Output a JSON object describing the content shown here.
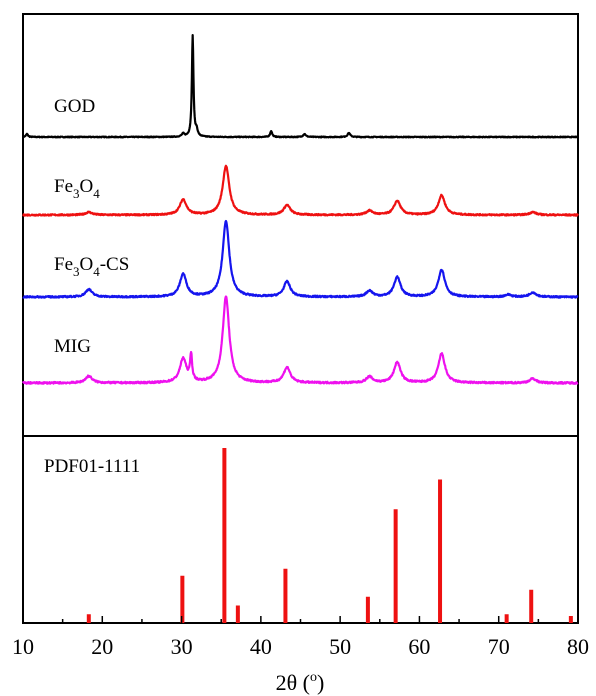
{
  "chart_data": {
    "type": "line",
    "xlabel": "2θ (°)",
    "xlabel_main": "2θ (",
    "xlabel_sup": "o",
    "xlabel_close": ")",
    "xlim": [
      10,
      80
    ],
    "xticks": [
      10,
      20,
      30,
      40,
      50,
      60,
      70,
      80
    ],
    "grid": false,
    "series": [
      {
        "name": "GOD",
        "label_parts": [
          {
            "t": "GOD",
            "sub": false
          }
        ],
        "color": "#000000",
        "noise": 0.4,
        "peaks": [
          {
            "x": 31.4,
            "h": 100,
            "w": 0.12
          },
          {
            "x": 31.9,
            "h": 6,
            "w": 0.15
          },
          {
            "x": 30.2,
            "h": 3,
            "w": 0.2
          },
          {
            "x": 41.3,
            "h": 6,
            "w": 0.15
          },
          {
            "x": 45.5,
            "h": 3,
            "w": 0.2
          },
          {
            "x": 51.1,
            "h": 4,
            "w": 0.2
          },
          {
            "x": 10.5,
            "h": 3,
            "w": 0.15
          }
        ]
      },
      {
        "name": "Fe3O4",
        "label_parts": [
          {
            "t": "Fe",
            "sub": false
          },
          {
            "t": "3",
            "sub": true
          },
          {
            "t": "O",
            "sub": false
          },
          {
            "t": "4",
            "sub": true
          }
        ],
        "color": "#ee1111",
        "noise": 1.0,
        "peaks": [
          {
            "x": 18.3,
            "h": 4,
            "w": 0.5
          },
          {
            "x": 30.2,
            "h": 22,
            "w": 0.5
          },
          {
            "x": 35.6,
            "h": 70,
            "w": 0.5
          },
          {
            "x": 43.3,
            "h": 14,
            "w": 0.5
          },
          {
            "x": 53.7,
            "h": 6,
            "w": 0.5
          },
          {
            "x": 57.2,
            "h": 20,
            "w": 0.5
          },
          {
            "x": 62.8,
            "h": 28,
            "w": 0.5
          },
          {
            "x": 74.3,
            "h": 4,
            "w": 0.5
          }
        ]
      },
      {
        "name": "Fe3O4-CS",
        "label_parts": [
          {
            "t": "Fe",
            "sub": false
          },
          {
            "t": "3",
            "sub": true
          },
          {
            "t": "O",
            "sub": false
          },
          {
            "t": "4",
            "sub": true
          },
          {
            "t": "-CS",
            "sub": false
          }
        ],
        "color": "#1515ee",
        "noise": 1.0,
        "peaks": [
          {
            "x": 18.3,
            "h": 10,
            "w": 0.5
          },
          {
            "x": 30.2,
            "h": 30,
            "w": 0.5
          },
          {
            "x": 35.6,
            "h": 100,
            "w": 0.5
          },
          {
            "x": 43.3,
            "h": 20,
            "w": 0.5
          },
          {
            "x": 53.7,
            "h": 8,
            "w": 0.5
          },
          {
            "x": 57.2,
            "h": 26,
            "w": 0.5
          },
          {
            "x": 62.8,
            "h": 36,
            "w": 0.5
          },
          {
            "x": 71.2,
            "h": 3,
            "w": 0.5
          },
          {
            "x": 74.3,
            "h": 6,
            "w": 0.5
          }
        ]
      },
      {
        "name": "MIG",
        "label_parts": [
          {
            "t": "MIG",
            "sub": false
          }
        ],
        "color": "#ee11ee",
        "noise": 1.0,
        "peaks": [
          {
            "x": 18.3,
            "h": 8,
            "w": 0.5
          },
          {
            "x": 30.2,
            "h": 28,
            "w": 0.5
          },
          {
            "x": 31.2,
            "h": 30,
            "w": 0.15
          },
          {
            "x": 35.6,
            "h": 100,
            "w": 0.5
          },
          {
            "x": 43.3,
            "h": 18,
            "w": 0.5
          },
          {
            "x": 53.7,
            "h": 7,
            "w": 0.5
          },
          {
            "x": 57.2,
            "h": 24,
            "w": 0.5
          },
          {
            "x": 62.8,
            "h": 34,
            "w": 0.5
          },
          {
            "x": 74.3,
            "h": 5,
            "w": 0.5
          }
        ]
      }
    ],
    "reference": {
      "name": "PDF01-1111",
      "color": "#ee1111",
      "ylim": [
        0,
        100
      ],
      "sticks": [
        {
          "x": 18.3,
          "y": 5
        },
        {
          "x": 30.1,
          "y": 27
        },
        {
          "x": 35.4,
          "y": 100
        },
        {
          "x": 37.1,
          "y": 10
        },
        {
          "x": 43.1,
          "y": 31
        },
        {
          "x": 53.5,
          "y": 15
        },
        {
          "x": 57.0,
          "y": 65
        },
        {
          "x": 62.6,
          "y": 82
        },
        {
          "x": 71.0,
          "y": 5
        },
        {
          "x": 74.1,
          "y": 19
        },
        {
          "x": 79.1,
          "y": 4
        }
      ]
    }
  }
}
